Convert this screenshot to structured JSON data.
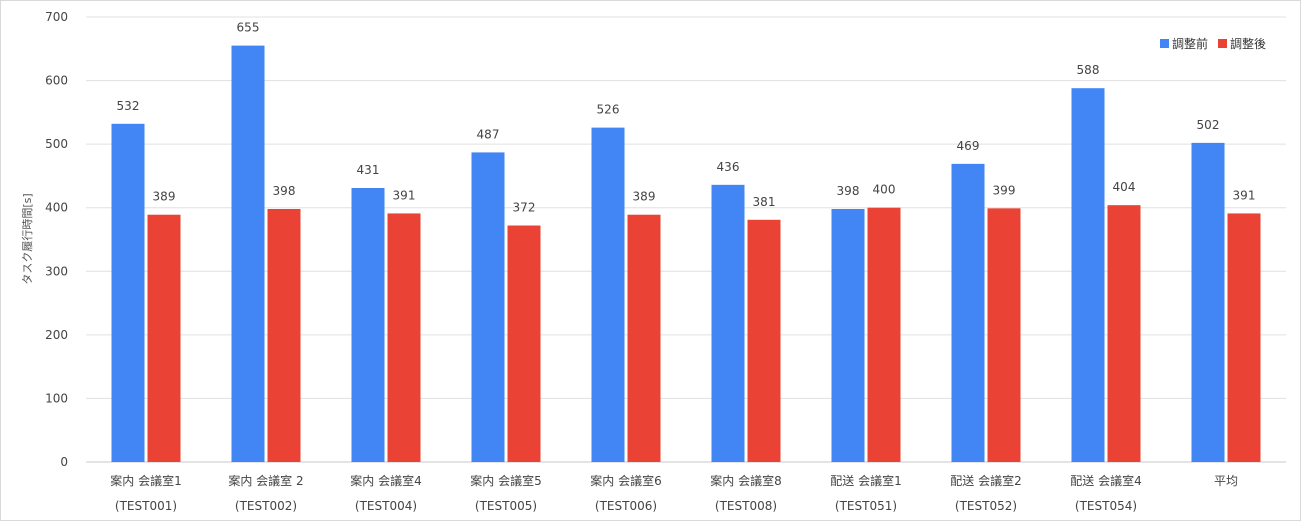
{
  "chart_data": {
    "type": "bar",
    "ylabel": "タスク履行時間[s]",
    "ylim": [
      0,
      700
    ],
    "yticks": [
      0,
      100,
      200,
      300,
      400,
      500,
      600,
      700
    ],
    "grid": true,
    "legend_position": "top-right",
    "categories": [
      {
        "line1": "案内 会議室1",
        "line2": "(TEST001)"
      },
      {
        "line1": "案内 会議室 2",
        "line2": "(TEST002)"
      },
      {
        "line1": "案内 会議室4",
        "line2": "(TEST004)"
      },
      {
        "line1": "案内 会議室5",
        "line2": "(TEST005)"
      },
      {
        "line1": "案内 会議室6",
        "line2": "(TEST006)"
      },
      {
        "line1": "案内 会議室8",
        "line2": "(TEST008)"
      },
      {
        "line1": "配送 会議室1",
        "line2": "(TEST051)"
      },
      {
        "line1": "配送 会議室2",
        "line2": "(TEST052)"
      },
      {
        "line1": "配送 会議室4",
        "line2": "(TEST054)"
      },
      {
        "line1": "平均",
        "line2": ""
      }
    ],
    "series": [
      {
        "name": "調整前",
        "color": "#4285f4",
        "values": [
          532,
          655,
          431,
          487,
          526,
          436,
          398,
          469,
          588,
          502
        ]
      },
      {
        "name": "調整後",
        "color": "#ea4335",
        "values": [
          389,
          398,
          391,
          372,
          389,
          381,
          400,
          399,
          404,
          391
        ]
      }
    ]
  }
}
